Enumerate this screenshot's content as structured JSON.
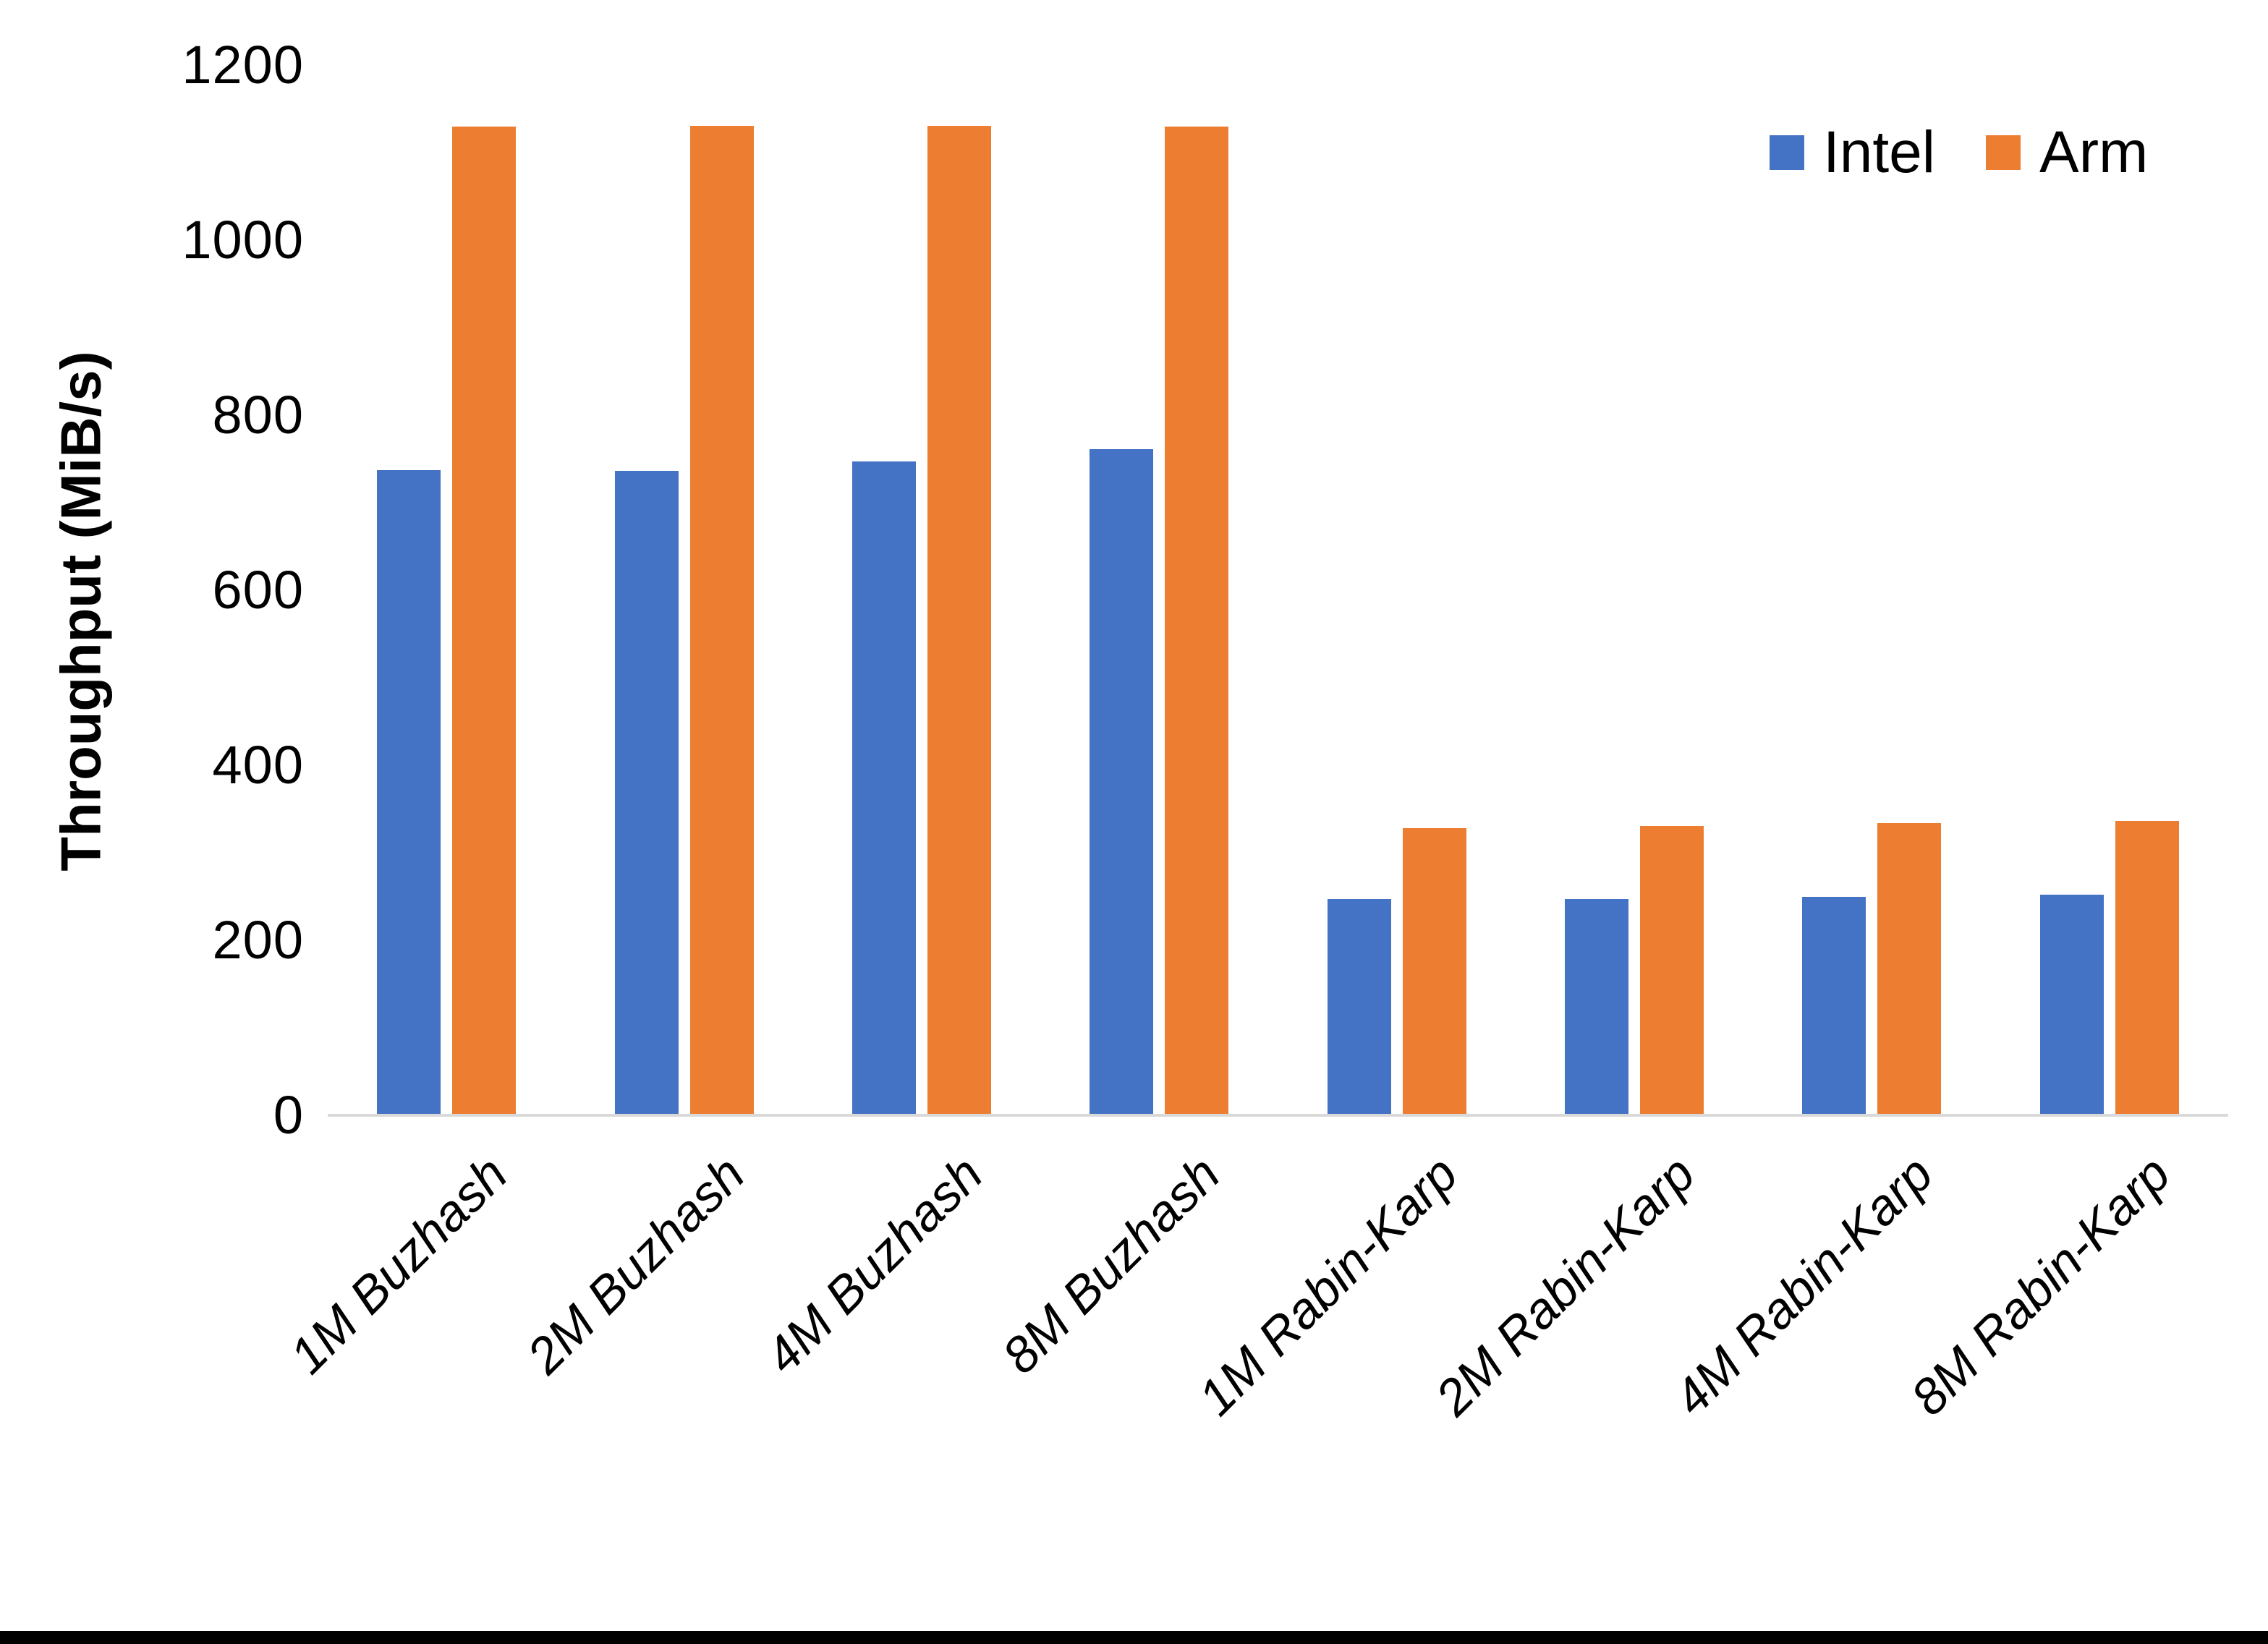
{
  "chart_data": {
    "type": "bar",
    "title": "",
    "xlabel": "",
    "ylabel": "Throughput (MiB/s)",
    "ylim": [
      0,
      1200
    ],
    "yticks": [
      0,
      200,
      400,
      600,
      800,
      1000,
      1200
    ],
    "grid": false,
    "legend_position": "top-right",
    "categories": [
      "1M Buzhash",
      "2M Buzhash",
      "4M Buzhash",
      "8M Buzhash",
      "1M Rabin-Karp",
      "2M Rabin-Karp",
      "4M Rabin-Karp",
      "8M Rabin-Karp"
    ],
    "series": [
      {
        "name": "Intel",
        "color": "#4472C4",
        "values": [
          737,
          736,
          747,
          761,
          247,
          247,
          250,
          252
        ]
      },
      {
        "name": "Arm",
        "color": "#ED7D31",
        "values": [
          1130,
          1131,
          1131,
          1130,
          328,
          331,
          334,
          336
        ]
      }
    ],
    "axis_line_color": "#D9D9D9",
    "background_color": "#FFFFFF"
  }
}
